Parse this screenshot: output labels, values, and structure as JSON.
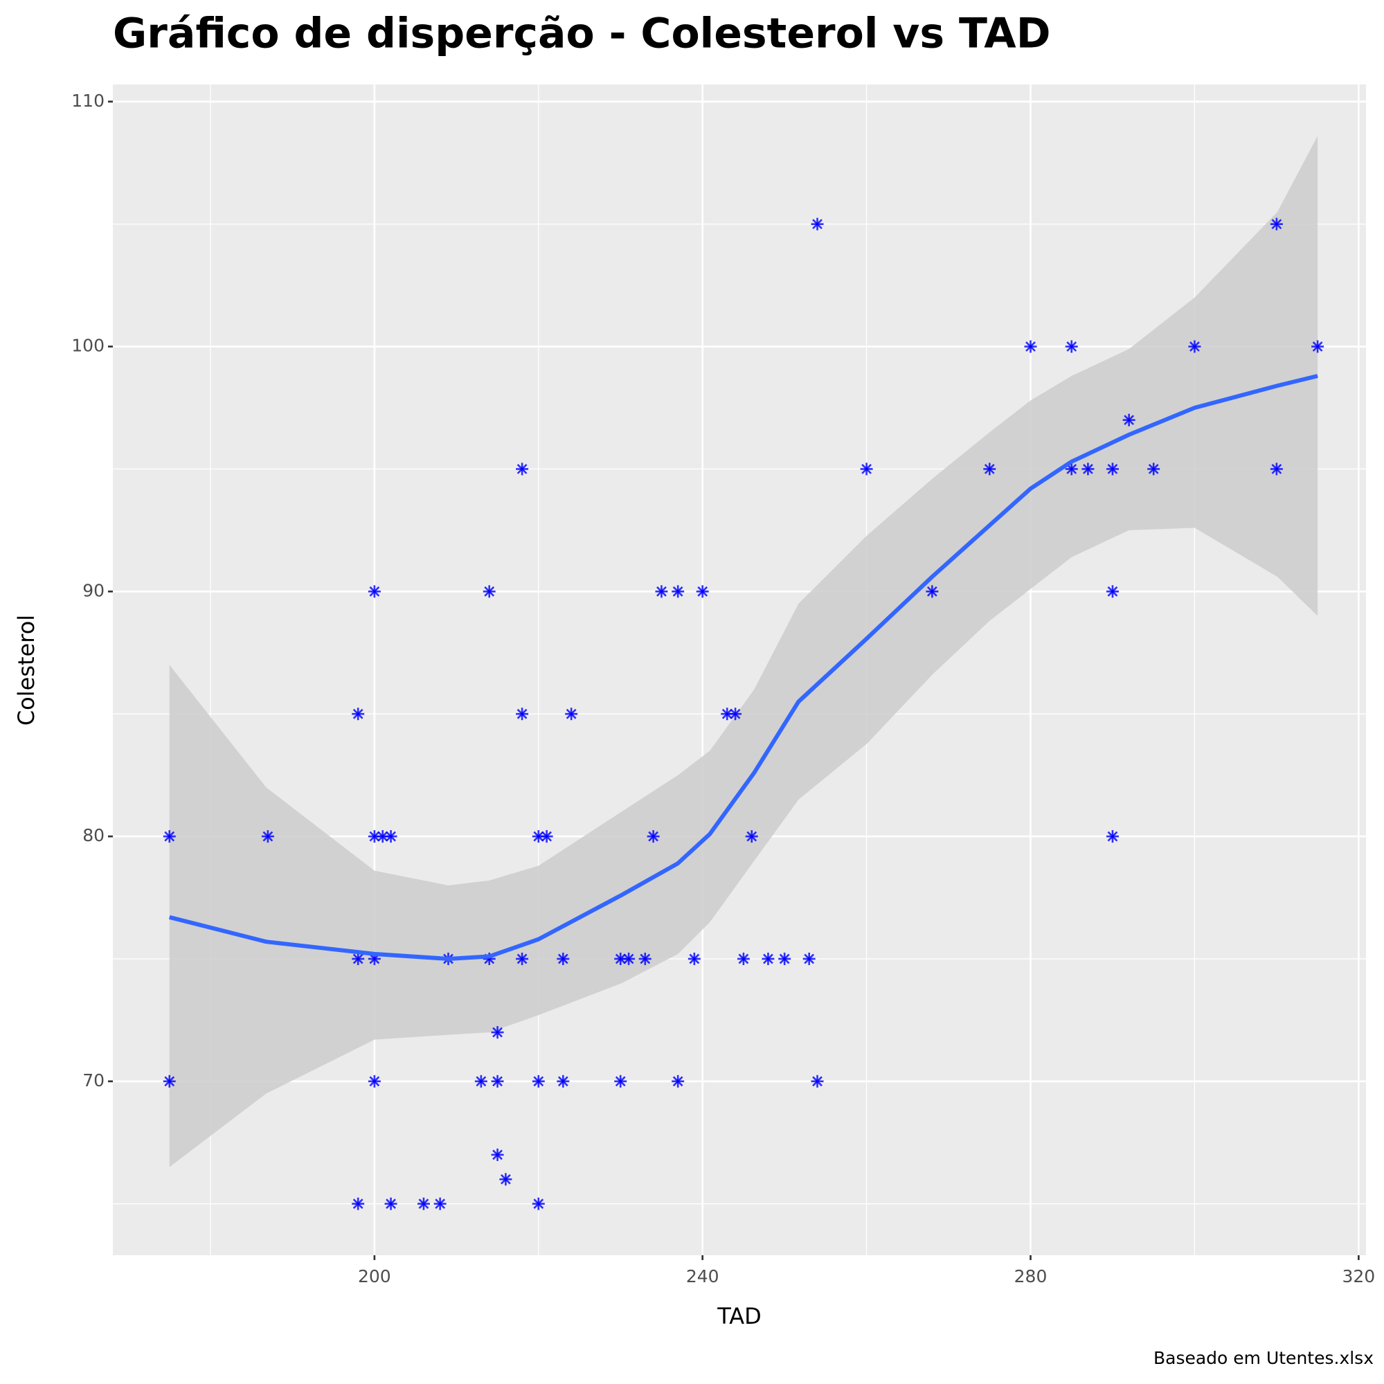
{
  "chart_data": {
    "type": "scatter",
    "title": "Gráfico de disperção - Colesterol vs TAD",
    "x_label": "TAD",
    "y_label": "Colesterol",
    "caption": "Baseado em Utentes.xlsx",
    "xlim": [
      168.1,
      320.9
    ],
    "ylim": [
      62.9,
      110.7
    ],
    "xticks": [
      200,
      240,
      280,
      320
    ],
    "yticks": [
      70,
      80,
      90,
      100,
      110
    ],
    "x_minor_grid": [
      180,
      220,
      260,
      300
    ],
    "y_minor_grid": [
      65,
      75,
      85,
      95,
      105
    ],
    "grid": true,
    "panel_color": "#ebebeb",
    "series": [
      {
        "color": "#0000ff",
        "marker": "asterisk",
        "x": [
          175,
          175,
          187,
          198,
          198,
          198,
          200,
          200,
          200,
          200,
          201,
          202,
          202,
          206,
          208,
          209,
          213,
          214,
          214,
          215,
          215,
          215,
          216,
          218,
          218,
          218,
          220,
          220,
          220,
          221,
          223,
          223,
          224,
          230,
          230,
          231,
          233,
          234,
          235,
          237,
          237,
          239,
          240,
          243,
          244,
          245,
          246,
          248,
          250,
          253,
          254,
          254,
          260,
          268,
          275,
          280,
          285,
          285,
          287,
          290,
          290,
          290,
          292,
          295,
          300,
          310,
          310,
          315
        ],
        "values": [
          80,
          70,
          80,
          85,
          75,
          65,
          90,
          80,
          75,
          70,
          80,
          80,
          65,
          65,
          65,
          75,
          70,
          90,
          75,
          72,
          70,
          67,
          66,
          95,
          85,
          75,
          80,
          70,
          65,
          80,
          75,
          70,
          85,
          75,
          70,
          75,
          75,
          80,
          90,
          90,
          70,
          75,
          90,
          85,
          85,
          75,
          80,
          75,
          75,
          75,
          105,
          70,
          95,
          90,
          95,
          100,
          100,
          95,
          95,
          95,
          90,
          80,
          97,
          95,
          100,
          105,
          95,
          100
        ]
      }
    ],
    "smooth": {
      "color": "#3366ff",
      "band_color": "#cccccc",
      "x": [
        175,
        186.8,
        200,
        209,
        214,
        220,
        230.1,
        237,
        240.9,
        246.3,
        251.7,
        260.1,
        268,
        275,
        280,
        285,
        292,
        300,
        310.1,
        315
      ],
      "values": [
        76.7,
        75.7,
        75.2,
        75.0,
        75.1,
        75.8,
        77.6,
        78.9,
        80.1,
        82.6,
        85.5,
        88.1,
        90.6,
        92.7,
        94.2,
        95.3,
        96.4,
        97.5,
        98.4,
        98.8
      ],
      "lower": [
        66.5,
        69.5,
        71.7,
        71.9,
        72.0,
        72.7,
        74.0,
        75.2,
        76.5,
        79.0,
        81.5,
        83.8,
        86.6,
        88.8,
        90.1,
        91.4,
        92.5,
        92.6,
        90.6,
        89.0
      ],
      "upper": [
        87.0,
        82.0,
        78.6,
        78.0,
        78.2,
        78.8,
        81.0,
        82.5,
        83.5,
        86.0,
        89.5,
        92.3,
        94.6,
        96.5,
        97.8,
        98.8,
        99.9,
        102.0,
        105.5,
        108.6
      ]
    }
  }
}
